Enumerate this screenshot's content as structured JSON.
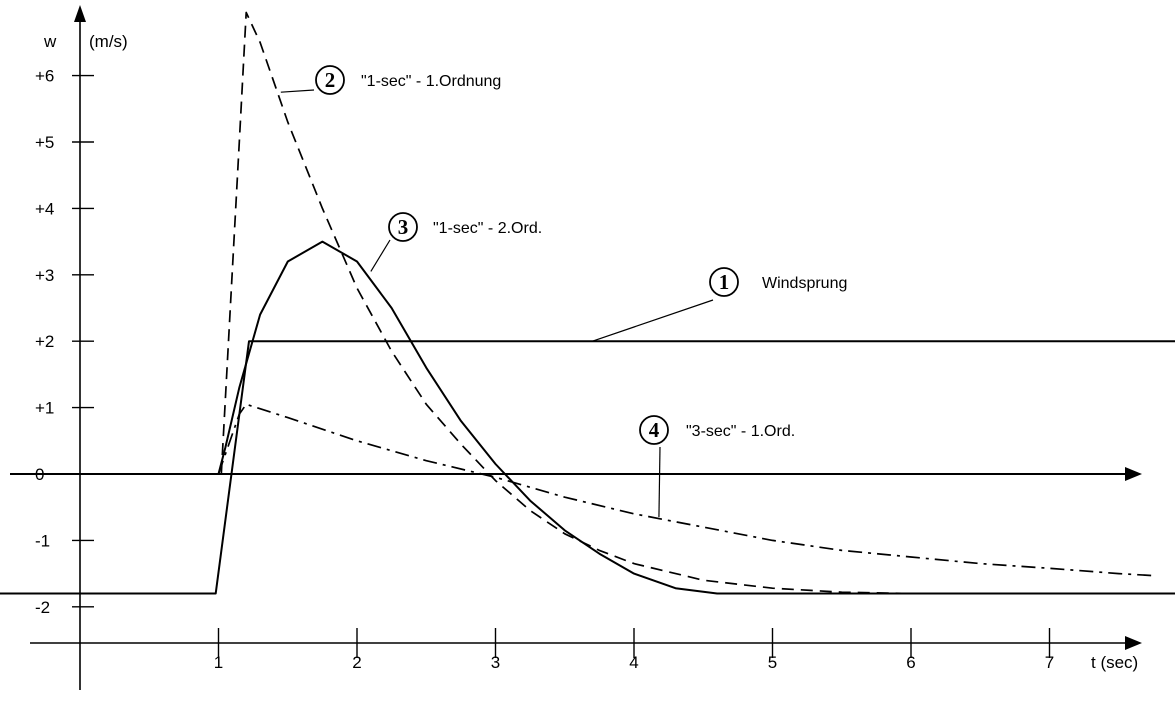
{
  "chart_data": {
    "type": "line",
    "title": "",
    "xlabel": "t (sec)",
    "ylabel": "w",
    "ylabel_unit": "(m/s)",
    "xlim": [
      0,
      8
    ],
    "ylim": [
      -2.5,
      7
    ],
    "x_ticks": [
      {
        "value": 1,
        "label": "1"
      },
      {
        "value": 2,
        "label": "2"
      },
      {
        "value": 3,
        "label": "3"
      },
      {
        "value": 4,
        "label": "4"
      },
      {
        "value": 5,
        "label": "5"
      },
      {
        "value": 6,
        "label": "6"
      },
      {
        "value": 7,
        "label": "7"
      }
    ],
    "y_ticks": [
      {
        "value": 6,
        "label": "+6"
      },
      {
        "value": 5,
        "label": "+5"
      },
      {
        "value": 4,
        "label": "+4"
      },
      {
        "value": 3,
        "label": "+3"
      },
      {
        "value": 2,
        "label": "+2"
      },
      {
        "value": 1,
        "label": "+1"
      },
      {
        "value": 0,
        "label": "0"
      },
      {
        "value": -1,
        "label": "-1"
      },
      {
        "value": -2,
        "label": "-2"
      }
    ],
    "grid": false,
    "series": [
      {
        "name": "Windsprung",
        "number": "1",
        "style": "solid",
        "x": [
          -1.5,
          0.98,
          1.22,
          7.93
        ],
        "y": [
          -1.8,
          -1.8,
          2.0,
          2.0
        ]
      },
      {
        "name": "\"1-sec\" - 1.Ordnung",
        "number": "2",
        "style": "dashed",
        "x": [
          1.02,
          1.15,
          1.2,
          1.3,
          1.5,
          1.75,
          2.0,
          2.25,
          2.5,
          2.75,
          3.0,
          3.25,
          3.5,
          3.75,
          4.0,
          4.5,
          5.0,
          5.5,
          6.0,
          6.5,
          7.0,
          7.5,
          7.93
        ],
        "y": [
          0.0,
          5.0,
          6.95,
          6.5,
          5.3,
          4.0,
          2.8,
          1.85,
          1.05,
          0.45,
          -0.1,
          -0.55,
          -0.9,
          -1.15,
          -1.35,
          -1.6,
          -1.72,
          -1.78,
          -1.8,
          -1.8,
          -1.8,
          -1.8,
          -1.8
        ]
      },
      {
        "name": "\"1-sec\" - 2.Ord.",
        "number": "3",
        "style": "solid",
        "x": [
          1.0,
          1.05,
          1.15,
          1.3,
          1.5,
          1.75,
          2.0,
          2.25,
          2.5,
          2.75,
          3.0,
          3.25,
          3.5,
          3.75,
          4.0,
          4.3,
          4.6,
          5.0,
          6.0,
          7.0,
          7.93
        ],
        "y": [
          0.0,
          0.4,
          1.3,
          2.4,
          3.2,
          3.5,
          3.2,
          2.5,
          1.6,
          0.8,
          0.15,
          -0.4,
          -0.85,
          -1.2,
          -1.5,
          -1.72,
          -1.8,
          -1.8,
          -1.8,
          -1.8,
          -1.8
        ]
      },
      {
        "name": "\"3-sec\" - 1.Ord.",
        "number": "4",
        "style": "dashdot",
        "x": [
          1.0,
          1.15,
          1.2,
          1.5,
          2.0,
          2.5,
          3.0,
          3.5,
          4.0,
          4.5,
          5.0,
          5.5,
          6.0,
          6.5,
          7.0,
          7.5,
          7.75
        ],
        "y": [
          0.0,
          0.9,
          1.05,
          0.85,
          0.5,
          0.2,
          -0.05,
          -0.35,
          -0.6,
          -0.8,
          -1.0,
          -1.15,
          -1.25,
          -1.35,
          -1.42,
          -1.5,
          -1.53
        ]
      }
    ],
    "annotations": [
      {
        "number": "1",
        "text": "Windsprung",
        "target_x": 3.7,
        "target_y": 2.0
      },
      {
        "number": "2",
        "text": "\"1-sec\" - 1.Ordnung",
        "target_x": 1.45,
        "target_y": 5.75
      },
      {
        "number": "3",
        "text": "\"1-sec\" - 2.Ord.",
        "target_x": 2.1,
        "target_y": 3.05
      },
      {
        "number": "4",
        "text": "\"3-sec\" - 1.Ord.",
        "target_x": 4.18,
        "target_y": -0.65
      }
    ]
  }
}
